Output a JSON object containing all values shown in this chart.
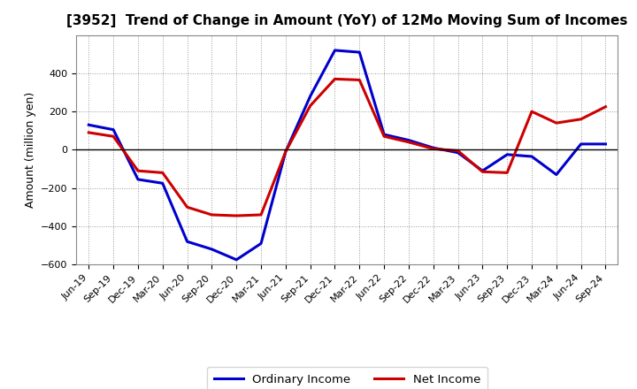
{
  "title": "[3952]  Trend of Change in Amount (YoY) of 12Mo Moving Sum of Incomes",
  "ylabel": "Amount (million yen)",
  "x_labels": [
    "Jun-19",
    "Sep-19",
    "Dec-19",
    "Mar-20",
    "Jun-20",
    "Sep-20",
    "Dec-20",
    "Mar-21",
    "Jun-21",
    "Sep-21",
    "Dec-21",
    "Mar-22",
    "Jun-22",
    "Sep-22",
    "Dec-22",
    "Mar-23",
    "Jun-23",
    "Sep-23",
    "Dec-23",
    "Mar-24",
    "Jun-24",
    "Sep-24"
  ],
  "ordinary_income": [
    130,
    105,
    -155,
    -175,
    -480,
    -520,
    -575,
    -490,
    -10,
    280,
    520,
    510,
    80,
    50,
    10,
    -15,
    -110,
    -25,
    -35,
    -130,
    30,
    30
  ],
  "net_income": [
    90,
    70,
    -110,
    -120,
    -300,
    -340,
    -345,
    -340,
    -10,
    230,
    370,
    365,
    70,
    40,
    5,
    -5,
    -115,
    -120,
    200,
    140,
    160,
    225
  ],
  "ordinary_color": "#0000cc",
  "net_color": "#cc0000",
  "ylim": [
    -600,
    600
  ],
  "yticks": [
    -600,
    -400,
    -200,
    0,
    200,
    400
  ],
  "bg_color": "#ffffff",
  "grid_color": "#999999",
  "line_width": 2.2,
  "legend_labels": [
    "Ordinary Income",
    "Net Income"
  ],
  "title_fontsize": 11,
  "tick_fontsize": 8,
  "ylabel_fontsize": 9
}
